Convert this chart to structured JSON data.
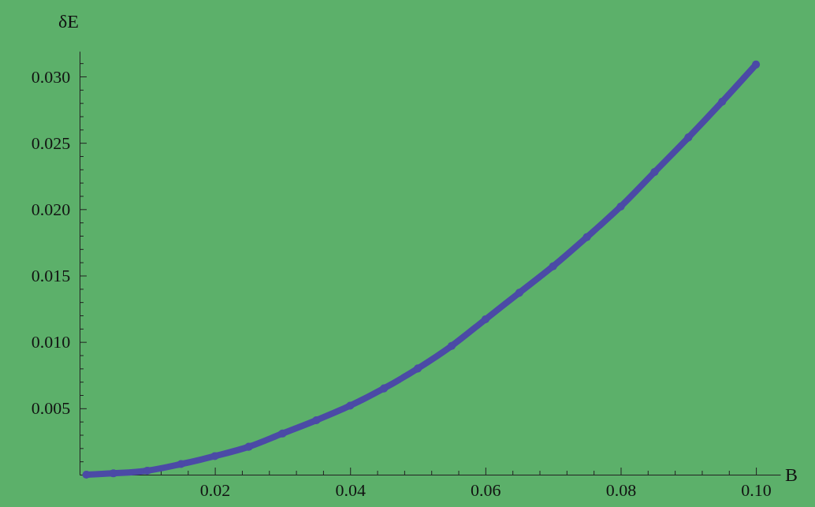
{
  "chart_data": {
    "type": "line",
    "xlabel": "B",
    "ylabel": "δE",
    "marker": "circle",
    "line_style": "solid",
    "grid": false,
    "x": [
      0.001,
      0.005,
      0.01,
      0.015,
      0.02,
      0.025,
      0.03,
      0.035,
      0.04,
      0.045,
      0.05,
      0.055,
      0.06,
      0.065,
      0.07,
      0.075,
      0.08,
      0.085,
      0.09,
      0.095,
      0.1
    ],
    "series": [
      {
        "color": "#4b4aa6",
        "values": [
          0,
          0.0001,
          0.0003,
          0.0008,
          0.0014,
          0.0021,
          0.0031,
          0.0041,
          0.0052,
          0.0065,
          0.008,
          0.0097,
          0.0117,
          0.0137,
          0.0157,
          0.0179,
          0.0202,
          0.0228,
          0.0254,
          0.0281,
          0.0309
        ]
      }
    ],
    "xlim": [
      0,
      0.1036
    ],
    "ylim": [
      0,
      0.0319
    ],
    "xticks": [
      {
        "value": 0.004,
        "label": null
      },
      {
        "value": 0.008,
        "label": null
      },
      {
        "value": 0.012,
        "label": null
      },
      {
        "value": 0.016,
        "label": null
      },
      0.02,
      {
        "value": 0.024,
        "label": null
      },
      {
        "value": 0.028,
        "label": null
      },
      {
        "value": 0.032,
        "label": null
      },
      {
        "value": 0.036,
        "label": null
      },
      0.04,
      {
        "value": 0.044,
        "label": null
      },
      {
        "value": 0.048,
        "label": null
      },
      {
        "value": 0.052,
        "label": null
      },
      {
        "value": 0.056,
        "label": null
      },
      0.06,
      {
        "value": 0.064,
        "label": null
      },
      {
        "value": 0.068,
        "label": null
      },
      {
        "value": 0.072,
        "label": null
      },
      {
        "value": 0.076,
        "label": null
      },
      0.08,
      {
        "value": 0.084,
        "label": null
      },
      {
        "value": 0.088,
        "label": null
      },
      {
        "value": 0.092,
        "label": null
      },
      {
        "value": 0.096,
        "label": null
      },
      {
        "value": 0.1,
        "label": "0.10"
      }
    ],
    "yticks": [
      {
        "value": 0.001,
        "label": null
      },
      {
        "value": 0.002,
        "label": null
      },
      {
        "value": 0.003,
        "label": null
      },
      {
        "value": 0.004,
        "label": null
      },
      0.005,
      {
        "value": 0.006,
        "label": null
      },
      {
        "value": 0.007,
        "label": null
      },
      {
        "value": 0.008,
        "label": null
      },
      {
        "value": 0.009,
        "label": null
      },
      {
        "value": 0.01,
        "label": "0.010"
      },
      {
        "value": 0.011,
        "label": null
      },
      {
        "value": 0.012,
        "label": null
      },
      {
        "value": 0.013,
        "label": null
      },
      {
        "value": 0.014,
        "label": null
      },
      0.015,
      {
        "value": 0.016,
        "label": null
      },
      {
        "value": 0.017,
        "label": null
      },
      {
        "value": 0.018,
        "label": null
      },
      {
        "value": 0.019,
        "label": null
      },
      {
        "value": 0.02,
        "label": "0.020"
      },
      {
        "value": 0.021,
        "label": null
      },
      {
        "value": 0.022,
        "label": null
      },
      {
        "value": 0.023,
        "label": null
      },
      {
        "value": 0.024,
        "label": null
      },
      0.025,
      {
        "value": 0.026,
        "label": null
      },
      {
        "value": 0.027,
        "label": null
      },
      {
        "value": 0.028,
        "label": null
      },
      {
        "value": 0.029,
        "label": null
      },
      {
        "value": 0.03,
        "label": "0.030"
      },
      {
        "value": 0.031,
        "label": null
      }
    ]
  }
}
